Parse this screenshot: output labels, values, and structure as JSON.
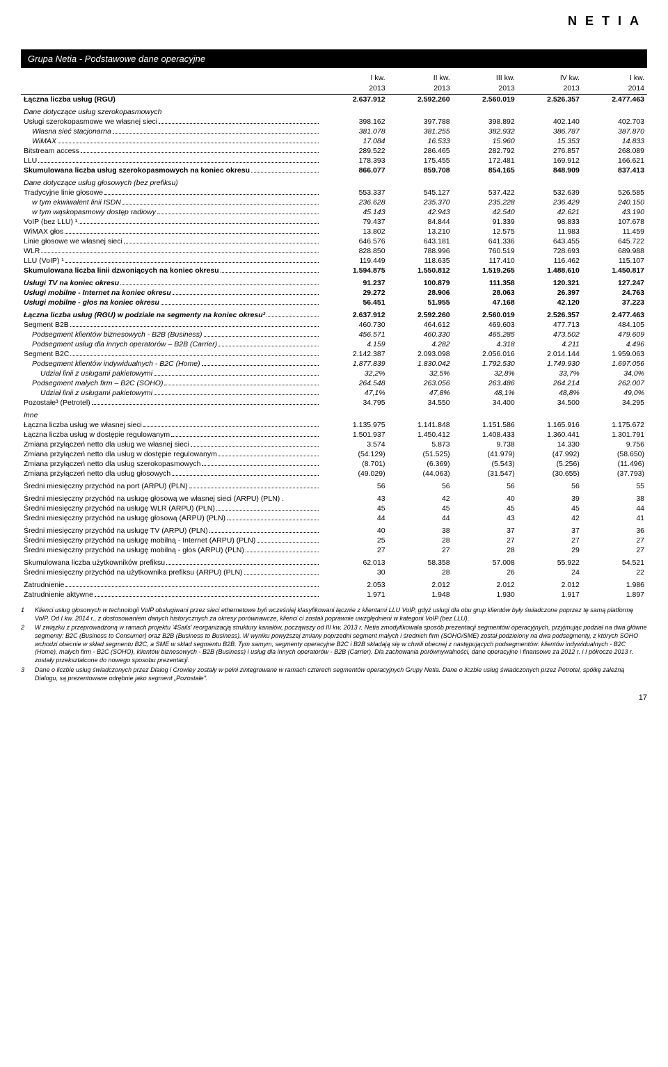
{
  "logo": "NETIA",
  "title": "Grupa Netia - Podstawowe dane operacyjne",
  "periods_top": [
    "I kw.",
    "II kw.",
    "III kw.",
    "IV kw.",
    "I kw."
  ],
  "periods_year": [
    "2013",
    "2013",
    "2013",
    "2013",
    "2014"
  ],
  "rows": [
    {
      "label": "Łączna liczba usług (RGU)",
      "vals": [
        "2.637.912",
        "2.592.260",
        "2.560.019",
        "2.526.357",
        "2.477.463"
      ],
      "bold": true,
      "nodots": true
    },
    {
      "label": "Dane dotyczące usług szerokopasmowych",
      "vals": [
        "",
        "",
        "",
        "",
        ""
      ],
      "italic": true,
      "nodots": true,
      "section": true
    },
    {
      "label": "Usługi szerokopasmowe we własnej sieci",
      "vals": [
        "398.162",
        "397.788",
        "398.892",
        "402.140",
        "402.703"
      ]
    },
    {
      "label": "Własna sieć stacjonarna",
      "vals": [
        "381.078",
        "381.255",
        "382.932",
        "386.787",
        "387.870"
      ],
      "indent": 1,
      "italic": true
    },
    {
      "label": "WiMAX",
      "vals": [
        "17.084",
        "16.533",
        "15.960",
        "15.353",
        "14.833"
      ],
      "indent": 1,
      "italic": true
    },
    {
      "label": "Bitstream access",
      "vals": [
        "289.522",
        "286.465",
        "282.792",
        "276.857",
        "268.089"
      ]
    },
    {
      "label": "LLU",
      "vals": [
        "178.393",
        "175.455",
        "172.481",
        "169.912",
        "166.621"
      ]
    },
    {
      "label": "Skumulowana liczba usług szerokopasmowych na koniec okresu",
      "vals": [
        "866.077",
        "859.708",
        "854.165",
        "848.909",
        "837.413"
      ],
      "bold": true
    },
    {
      "label": "Dane dotyczące usług głosowych (bez prefiksu)",
      "vals": [
        "",
        "",
        "",
        "",
        ""
      ],
      "italic": true,
      "nodots": true,
      "section": true
    },
    {
      "label": "Tradycyjne linie głosowe",
      "vals": [
        "553.337",
        "545.127",
        "537.422",
        "532.639",
        "526.585"
      ]
    },
    {
      "label": "w tym ekwiwalent linii ISDN",
      "vals": [
        "236.628",
        "235.370",
        "235.228",
        "236.429",
        "240.150"
      ],
      "indent": 1,
      "italic": true
    },
    {
      "label": "w tym wąskopasmowy dostęp radiowy",
      "vals": [
        "45.143",
        "42.943",
        "42.540",
        "42.621",
        "43.190"
      ],
      "indent": 1,
      "italic": true
    },
    {
      "label": "VoIP (bez LLU) ¹",
      "vals": [
        "79.437",
        "84.844",
        "91.339",
        "98.833",
        "107.678"
      ]
    },
    {
      "label": "WiMAX głos",
      "vals": [
        "13.802",
        "13.210",
        "12.575",
        "11.983",
        "11.459"
      ]
    },
    {
      "label": "Linie głosowe we własnej sieci",
      "vals": [
        "646.576",
        "643.181",
        "641.336",
        "643.455",
        "645.722"
      ]
    },
    {
      "label": "WLR",
      "vals": [
        "828.850",
        "788.996",
        "760.519",
        "728.693",
        "689.988"
      ]
    },
    {
      "label": "LLU (VoIP) ¹",
      "vals": [
        "119.449",
        "118.635",
        "117.410",
        "116.462",
        "115.107"
      ]
    },
    {
      "label": "Skumulowana liczba linii dzwoniących na koniec okresu",
      "vals": [
        "1.594.875",
        "1.550.812",
        "1.519.265",
        "1.488.610",
        "1.450.817"
      ],
      "bold": true
    },
    {
      "label": "Usługi TV na koniec okresu",
      "vals": [
        "91.237",
        "100.879",
        "111.358",
        "120.321",
        "127.247"
      ],
      "section": true,
      "labelitalic": true,
      "bold": true
    },
    {
      "label": "Usługi mobilne - Internet na koniec okresu",
      "vals": [
        "29.272",
        "28.906",
        "28.063",
        "26.397",
        "24.763"
      ],
      "labelitalic": true,
      "bold": true
    },
    {
      "label": "Usługi mobilne - głos na koniec okresu",
      "vals": [
        "56.451",
        "51.955",
        "47.168",
        "42.120",
        "37.223"
      ],
      "labelitalic": true,
      "bold": true
    },
    {
      "label": "Łączna liczba usług (RGU) w podziale na segmenty na koniec okresu²",
      "vals": [
        "2.637.912",
        "2.592.260",
        "2.560.019",
        "2.526.357",
        "2.477.463"
      ],
      "section": true,
      "labelitalic": true,
      "bold": true
    },
    {
      "label": "Segment B2B",
      "vals": [
        "460.730",
        "464.612",
        "469.603",
        "477.713",
        "484.105"
      ]
    },
    {
      "label": "Podsegment klientów biznesowych - B2B (Business)",
      "vals": [
        "456.571",
        "460.330",
        "465.285",
        "473.502",
        "479.609"
      ],
      "indent": 1,
      "italic": true
    },
    {
      "label": "Podsegment usług dla innych operatorów – B2B (Carrier)",
      "vals": [
        "4.159",
        "4.282",
        "4.318",
        "4.211",
        "4.496"
      ],
      "indent": 1,
      "italic": true
    },
    {
      "label": "Segment B2C",
      "vals": [
        "2.142.387",
        "2.093.098",
        "2.056.016",
        "2.014.144",
        "1.959.063"
      ]
    },
    {
      "label": "Podsegment klientów indywidualnych - B2C (Home)",
      "vals": [
        "1.877.839",
        "1.830.042",
        "1.792.530",
        "1.749.930",
        "1.697.056"
      ],
      "indent": 1,
      "italic": true
    },
    {
      "label": "Udział linii z usługami pakietowymi",
      "vals": [
        "32,2%",
        "32,5%",
        "32,8%",
        "33,7%",
        "34,0%"
      ],
      "indent": 2,
      "italic": true
    },
    {
      "label": "Podsegment małych firm – B2C (SOHO)",
      "vals": [
        "264.548",
        "263.056",
        "263.486",
        "264.214",
        "262.007"
      ],
      "indent": 1,
      "italic": true
    },
    {
      "label": "Udział linii z usługami pakietowymi",
      "vals": [
        "47,1%",
        "47,8%",
        "48,1%",
        "48,8%",
        "49,0%"
      ],
      "indent": 2,
      "italic": true
    },
    {
      "label": "Pozostałe³ (Petrotel)",
      "vals": [
        "34.795",
        "34.550",
        "34.400",
        "34.500",
        "34.295"
      ]
    },
    {
      "label": "Inne",
      "vals": [
        "",
        "",
        "",
        "",
        ""
      ],
      "italic": true,
      "nodots": true,
      "section": true
    },
    {
      "label": "Łączna liczba usług we własnej sieci",
      "vals": [
        "1.135.975",
        "1.141.848",
        "1.151.586",
        "1.165.916",
        "1.175.672"
      ]
    },
    {
      "label": "Łączna liczba usług w dostępie regulowanym",
      "vals": [
        "1.501.937",
        "1.450.412",
        "1.408.433",
        "1.360.441",
        "1.301.791"
      ]
    },
    {
      "label": "Zmiana przyłączeń netto dla usług we własnej sieci",
      "vals": [
        "3.574",
        "5.873",
        "9.738",
        "14.330",
        "9.756"
      ]
    },
    {
      "label": "Zmiana przyłączeń netto dla usług w dostępie regulowanym",
      "vals": [
        "(54.129)",
        "(51.525)",
        "(41.979)",
        "(47.992)",
        "(58.650)"
      ]
    },
    {
      "label": "Zmiana przyłączeń netto dla usług szerokopasmowych",
      "vals": [
        "(8.701)",
        "(6.369)",
        "(5.543)",
        "(5.256)",
        "(11.496)"
      ]
    },
    {
      "label": "Zmiana przyłączeń netto dla usług głosowych",
      "vals": [
        "(49.029)",
        "(44.063)",
        "(31.547)",
        "(30.655)",
        "(37.793)"
      ]
    },
    {
      "label": "Średni miesięczny przychód na port (ARPU) (PLN)",
      "vals": [
        "56",
        "56",
        "56",
        "56",
        "55"
      ],
      "section": true
    },
    {
      "label": "Średni miesięczny przychód na usługę głosową we własnej sieci (ARPU) (PLN) .",
      "vals": [
        "43",
        "42",
        "40",
        "39",
        "38"
      ],
      "section": true,
      "nodots": true
    },
    {
      "label": "Średni miesięczny przychód na usługę WLR (ARPU) (PLN)",
      "vals": [
        "45",
        "45",
        "45",
        "45",
        "44"
      ]
    },
    {
      "label": "Średni miesięczny przychód na usługę głosową (ARPU) (PLN)",
      "vals": [
        "44",
        "44",
        "43",
        "42",
        "41"
      ]
    },
    {
      "label": "Średni miesięczny przychód na usługę TV (ARPU) (PLN)",
      "vals": [
        "40",
        "38",
        "37",
        "37",
        "36"
      ],
      "section": true
    },
    {
      "label": "Średni miesięczny przychód na usługę mobilną - Internet (ARPU) (PLN)",
      "vals": [
        "25",
        "28",
        "27",
        "27",
        "27"
      ]
    },
    {
      "label": "Średni miesięczny przychód na usługę mobilną - głos (ARPU) (PLN)",
      "vals": [
        "27",
        "27",
        "28",
        "29",
        "27"
      ]
    },
    {
      "label": "Skumulowana liczba użytkowników prefiksu",
      "vals": [
        "62.013",
        "58.358",
        "57.008",
        "55.922",
        "54.521"
      ],
      "section": true
    },
    {
      "label": "Średni miesięczny przychód na użytkownika prefiksu (ARPU) (PLN)",
      "vals": [
        "30",
        "28",
        "26",
        "24",
        "22"
      ]
    },
    {
      "label": "Zatrudnienie",
      "vals": [
        "2.053",
        "2.012",
        "2.012",
        "2.012",
        "1.986"
      ],
      "section": true
    },
    {
      "label": "Zatrudnienie aktywne",
      "vals": [
        "1.971",
        "1.948",
        "1.930",
        "1.917",
        "1.897"
      ]
    }
  ],
  "footnotes": [
    {
      "n": "1",
      "t": "Klienci usług głosowych w technologii VoIP obsługiwani przez sieci ethernetowe byli wcześniej klasyfikowani łącznie z klientami LLU VoIP, gdyż usługi dla obu grup klientów były świadczone poprzez tę samą platformę VoIP. Od I kw. 2014 r., z dostosowaniem danych historycznych za okresy porównawcze, klienci ci zostali poprawnie uwzględnieni w kategorii VoIP (bez LLU)."
    },
    {
      "n": "2",
      "t": "W związku z przeprowadzoną w ramach projektu '4Sails' reorganizacją struktury kanałów, począwszy od III kw. 2013 r. Netia zmodyfikowała sposób prezentacji segmentów operacyjnych, przyjmując podział na dwa główne segmenty: B2C (Business to Consumer) oraz B2B (Business to Business). W wyniku powyższej zmiany poprzedni segment małych i średnich firm (SOHO/SME) został podzielony na dwa podsegmenty, z których SOHO wchodzi obecnie w skład segmentu B2C, a SME w skład segmentu B2B. Tym samym, segmenty operacyjne B2C i B2B składają się w chwili obecnej z następujących podsegmentów: klientów indywidualnych - B2C (Home), małych firm - B2C (SOHO), klientów biznesowych - B2B (Business) i usług dla innych operatorów - B2B (Carrier). Dla zachowania porównywalności, dane operacyjne i finansowe za 2012 r. i I półrocze 2013 r. zostały przekształcone do nowego sposobu prezentacji."
    },
    {
      "n": "3",
      "t": "Dane o liczbie usług świadczonych przez Dialog i Crowley zostały w pełni zintegrowane w ramach czterech segmentów operacyjnych Grupy Netia. Dane o liczbie usług świadczonych przez Petrotel, spółkę zależną Dialogu, są prezentowane odrębnie jako segment „Pozostałe\"."
    }
  ],
  "page_num": "17"
}
